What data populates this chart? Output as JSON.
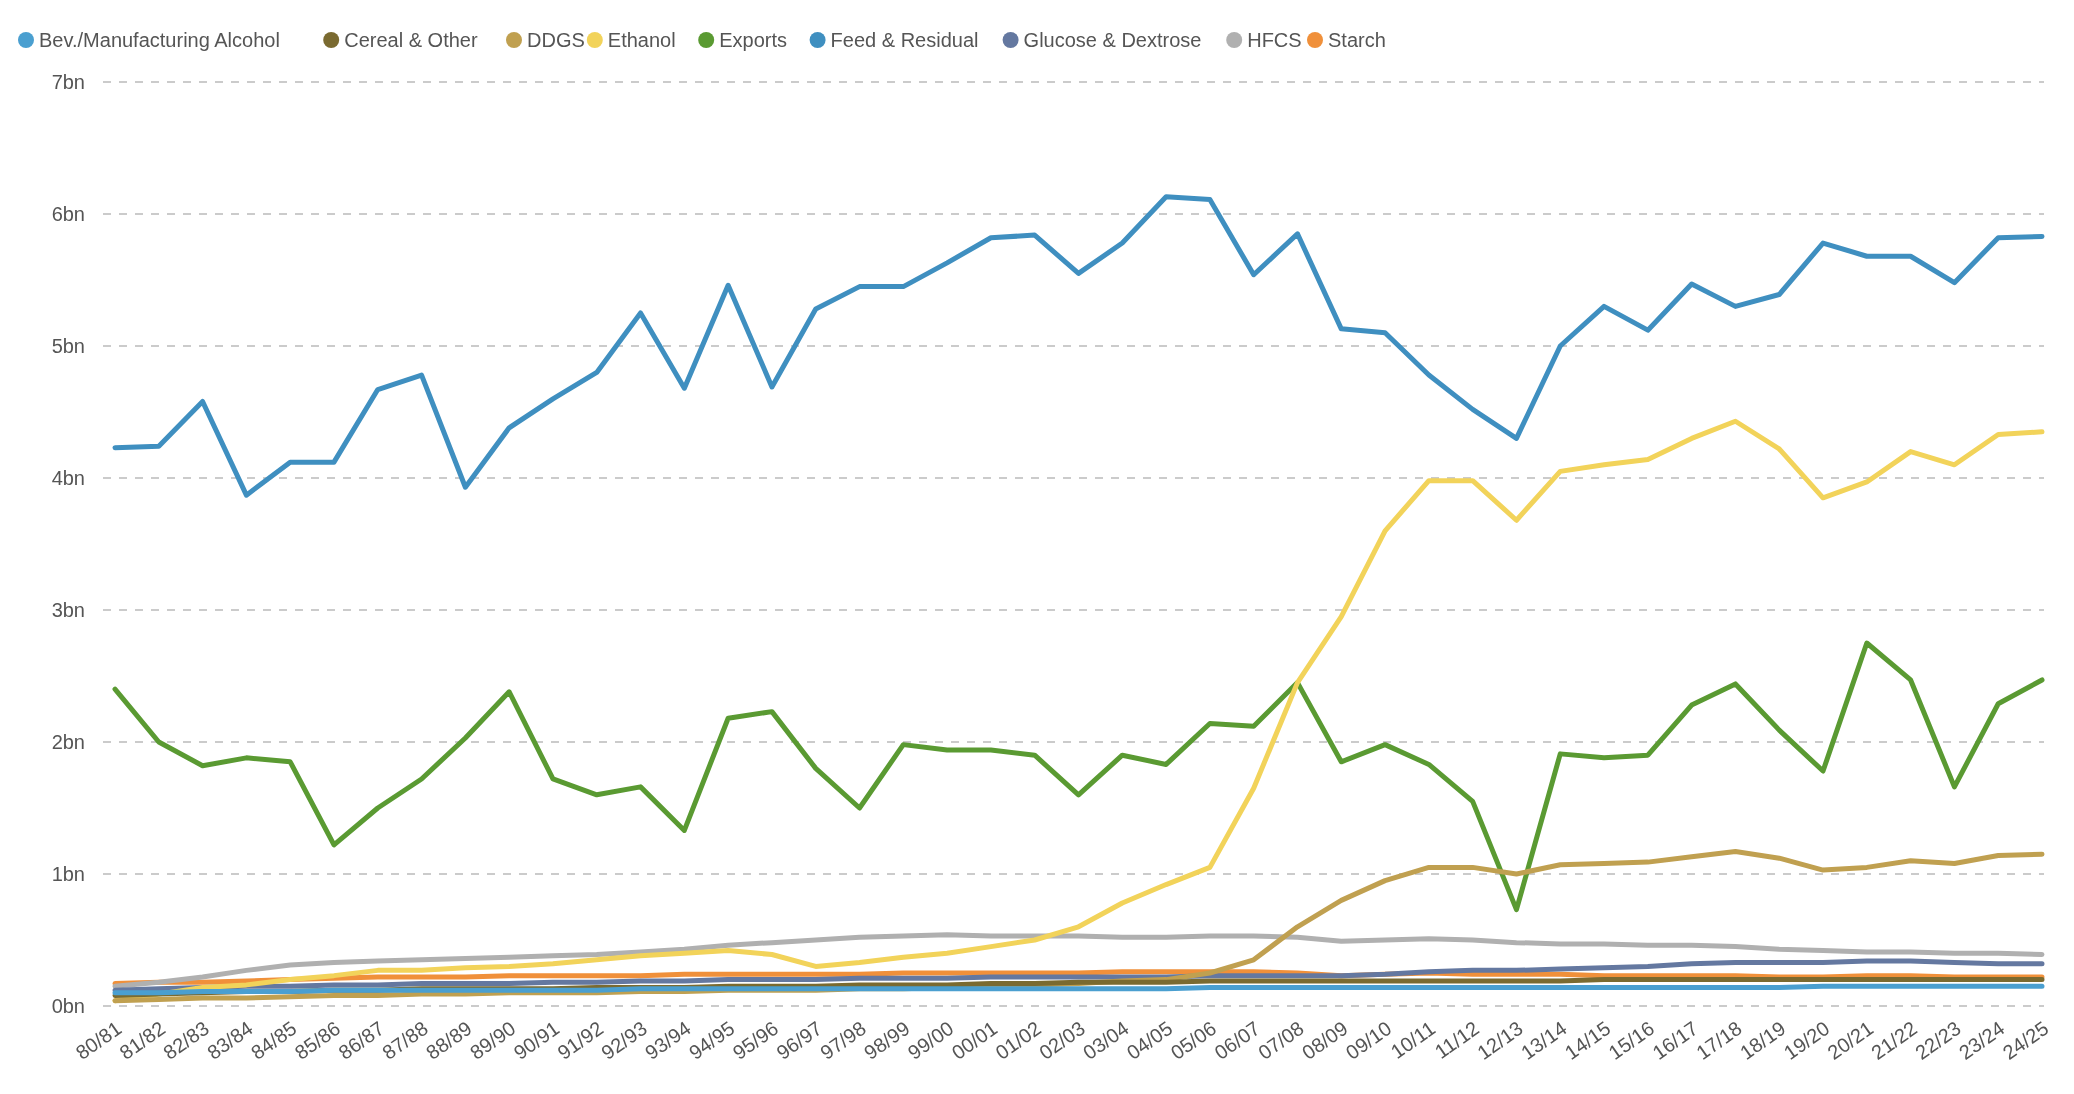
{
  "chart_data": {
    "type": "line",
    "categories": [
      "80/81",
      "81/82",
      "82/83",
      "83/84",
      "84/85",
      "85/86",
      "86/87",
      "87/88",
      "88/89",
      "89/90",
      "90/91",
      "91/92",
      "92/93",
      "93/94",
      "94/95",
      "95/96",
      "96/97",
      "97/98",
      "98/99",
      "99/00",
      "00/01",
      "01/02",
      "02/03",
      "03/04",
      "04/05",
      "05/06",
      "06/07",
      "07/08",
      "08/09",
      "09/10",
      "10/11",
      "11/12",
      "12/13",
      "13/14",
      "14/15",
      "15/16",
      "16/17",
      "17/18",
      "18/19",
      "19/20",
      "20/21",
      "21/22",
      "22/23",
      "23/24",
      "24/25"
    ],
    "ylim": [
      0,
      7
    ],
    "yticks": [
      {
        "value": 0,
        "label": "0bn"
      },
      {
        "value": 1,
        "label": "1bn"
      },
      {
        "value": 2,
        "label": "2bn"
      },
      {
        "value": 3,
        "label": "3bn"
      },
      {
        "value": 4,
        "label": "4bn"
      },
      {
        "value": 5,
        "label": "5bn"
      },
      {
        "value": 6,
        "label": "6bn"
      },
      {
        "value": 7,
        "label": "7bn"
      }
    ],
    "grid": "y",
    "legend": "top left",
    "line_style": "solid",
    "series": [
      {
        "name": "Bev./Manufacturing Alcohol",
        "color": "#4a9fd0",
        "values": [
          0.1,
          0.1,
          0.11,
          0.11,
          0.11,
          0.12,
          0.12,
          0.12,
          0.12,
          0.12,
          0.12,
          0.12,
          0.13,
          0.13,
          0.13,
          0.13,
          0.13,
          0.13,
          0.13,
          0.13,
          0.13,
          0.13,
          0.13,
          0.13,
          0.13,
          0.14,
          0.14,
          0.14,
          0.14,
          0.14,
          0.14,
          0.14,
          0.14,
          0.14,
          0.14,
          0.14,
          0.14,
          0.14,
          0.14,
          0.15,
          0.15,
          0.15,
          0.15,
          0.15,
          0.15
        ]
      },
      {
        "name": "Cereal & Other",
        "color": "#7a6a30",
        "values": [
          0.08,
          0.09,
          0.1,
          0.11,
          0.11,
          0.12,
          0.12,
          0.13,
          0.13,
          0.13,
          0.13,
          0.14,
          0.14,
          0.14,
          0.15,
          0.15,
          0.15,
          0.16,
          0.16,
          0.16,
          0.17,
          0.17,
          0.18,
          0.18,
          0.18,
          0.19,
          0.19,
          0.19,
          0.19,
          0.19,
          0.19,
          0.19,
          0.19,
          0.19,
          0.2,
          0.2,
          0.2,
          0.2,
          0.2,
          0.2,
          0.2,
          0.2,
          0.2,
          0.2,
          0.2
        ]
      },
      {
        "name": "DDGS",
        "color": "#c0a050",
        "values": [
          0.04,
          0.05,
          0.06,
          0.06,
          0.07,
          0.08,
          0.08,
          0.09,
          0.09,
          0.1,
          0.1,
          0.1,
          0.11,
          0.11,
          0.12,
          0.12,
          0.12,
          0.13,
          0.13,
          0.14,
          0.15,
          0.16,
          0.17,
          0.19,
          0.2,
          0.25,
          0.35,
          0.6,
          0.8,
          0.95,
          1.05,
          1.05,
          1.0,
          1.07,
          1.08,
          1.09,
          1.13,
          1.17,
          1.12,
          1.03,
          1.05,
          1.1,
          1.08,
          1.14,
          1.15
        ]
      },
      {
        "name": "Ethanol",
        "color": "#f2d35a",
        "values": [
          0.04,
          0.09,
          0.14,
          0.16,
          0.2,
          0.23,
          0.27,
          0.27,
          0.29,
          0.3,
          0.32,
          0.35,
          0.38,
          0.4,
          0.42,
          0.39,
          0.3,
          0.33,
          0.37,
          0.4,
          0.45,
          0.5,
          0.6,
          0.78,
          0.92,
          1.05,
          1.65,
          2.45,
          2.95,
          3.6,
          3.98,
          3.98,
          3.68,
          4.05,
          4.1,
          4.14,
          4.3,
          4.43,
          4.22,
          3.85,
          3.97,
          4.2,
          4.1,
          4.33,
          4.35
        ]
      },
      {
        "name": "Exports",
        "color": "#5a9a32",
        "values": [
          2.4,
          2.0,
          1.82,
          1.88,
          1.85,
          1.22,
          1.5,
          1.72,
          2.03,
          2.38,
          1.72,
          1.6,
          1.66,
          1.33,
          2.18,
          2.23,
          1.8,
          1.5,
          1.98,
          1.94,
          1.94,
          1.9,
          1.6,
          1.9,
          1.83,
          2.14,
          2.12,
          2.45,
          1.85,
          1.98,
          1.83,
          1.55,
          0.73,
          1.91,
          1.88,
          1.9,
          2.28,
          2.44,
          2.09,
          1.78,
          2.75,
          2.47,
          1.66,
          2.29,
          2.47
        ]
      },
      {
        "name": "Feed & Residual",
        "color": "#3f8fc0",
        "values": [
          4.23,
          4.24,
          4.58,
          3.87,
          4.12,
          4.12,
          4.67,
          4.78,
          3.93,
          4.38,
          4.6,
          4.8,
          5.25,
          4.68,
          5.46,
          4.69,
          5.28,
          5.45,
          5.45,
          5.63,
          5.82,
          5.84,
          5.55,
          5.78,
          6.13,
          6.11,
          5.54,
          5.85,
          5.13,
          5.1,
          4.78,
          4.52,
          4.3,
          5.0,
          5.3,
          5.12,
          5.47,
          5.3,
          5.39,
          5.78,
          5.68,
          5.68,
          5.48,
          5.82,
          5.83
        ]
      },
      {
        "name": "Glucose & Dextrose",
        "color": "#6478a0",
        "values": [
          0.12,
          0.13,
          0.14,
          0.15,
          0.15,
          0.16,
          0.16,
          0.17,
          0.17,
          0.17,
          0.18,
          0.18,
          0.19,
          0.19,
          0.2,
          0.2,
          0.2,
          0.21,
          0.21,
          0.21,
          0.22,
          0.22,
          0.22,
          0.22,
          0.22,
          0.23,
          0.23,
          0.23,
          0.23,
          0.24,
          0.26,
          0.27,
          0.27,
          0.28,
          0.29,
          0.3,
          0.32,
          0.33,
          0.33,
          0.33,
          0.34,
          0.34,
          0.33,
          0.32,
          0.32
        ]
      },
      {
        "name": "HFCS",
        "color": "#b0b0b0",
        "values": [
          0.15,
          0.18,
          0.22,
          0.27,
          0.31,
          0.33,
          0.34,
          0.35,
          0.36,
          0.37,
          0.38,
          0.39,
          0.41,
          0.43,
          0.46,
          0.48,
          0.5,
          0.52,
          0.53,
          0.54,
          0.53,
          0.53,
          0.53,
          0.52,
          0.52,
          0.53,
          0.53,
          0.52,
          0.49,
          0.5,
          0.51,
          0.5,
          0.48,
          0.47,
          0.47,
          0.46,
          0.46,
          0.45,
          0.43,
          0.42,
          0.41,
          0.41,
          0.4,
          0.4,
          0.39
        ]
      },
      {
        "name": "Starch",
        "color": "#f0903a",
        "values": [
          0.17,
          0.18,
          0.18,
          0.19,
          0.2,
          0.21,
          0.22,
          0.22,
          0.22,
          0.23,
          0.23,
          0.23,
          0.23,
          0.24,
          0.24,
          0.24,
          0.24,
          0.24,
          0.25,
          0.25,
          0.25,
          0.25,
          0.25,
          0.26,
          0.26,
          0.26,
          0.26,
          0.25,
          0.23,
          0.24,
          0.25,
          0.24,
          0.24,
          0.24,
          0.23,
          0.23,
          0.23,
          0.23,
          0.22,
          0.22,
          0.23,
          0.23,
          0.22,
          0.22,
          0.22
        ]
      }
    ]
  }
}
